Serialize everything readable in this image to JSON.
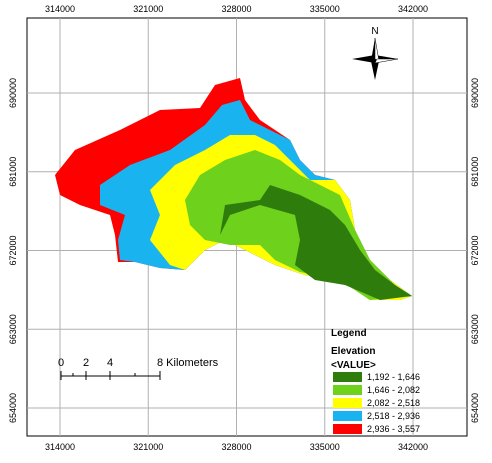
{
  "map": {
    "x_coordinates": [
      314000,
      321000,
      328000,
      335000,
      342000
    ],
    "y_coordinates": [
      690000,
      681000,
      672000,
      663000,
      654000
    ],
    "north_label": "N",
    "scale_bar": {
      "labels": [
        "0",
        "2",
        "4",
        "8 Kilometers"
      ]
    },
    "legend": {
      "title": "Legend",
      "subtitle": "Elevation",
      "field": "<VALUE>",
      "classes": [
        {
          "label": "1,192 - 1,646",
          "color": "#2e7d0c"
        },
        {
          "label": "1,646 - 2,082",
          "color": "#6ed21c"
        },
        {
          "label": "2,082 - 2,518",
          "color": "#ffff00"
        },
        {
          "label": "2,518 - 2,936",
          "color": "#19b4f0"
        },
        {
          "label": "2,936 - 3,557",
          "color": "#ff0000"
        }
      ]
    }
  }
}
